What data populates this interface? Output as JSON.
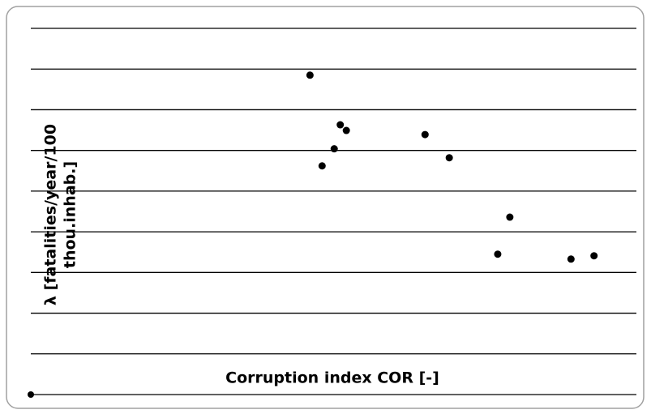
{
  "chart_data": {
    "type": "scatter",
    "x_label": "Corruption  index COR [-]",
    "y_label": [
      "λ [fatalities/year/100",
      "thou.inhab.]"
    ],
    "x": [
      4.61,
      4.81,
      5.01,
      5.11,
      5.21,
      6.51,
      6.91,
      7.71,
      7.91,
      8.92,
      9.3
    ],
    "y": [
      7.85,
      5.62,
      6.04,
      6.63,
      6.49,
      6.39,
      5.82,
      3.45,
      4.36,
      3.33,
      3.41
    ],
    "color": "#000000",
    "xlim": [
      0,
      10
    ],
    "ylim": [
      0,
      9
    ],
    "yticks": [
      0,
      1,
      2,
      3,
      4,
      5,
      6,
      7,
      8,
      9
    ],
    "grid": true
  }
}
